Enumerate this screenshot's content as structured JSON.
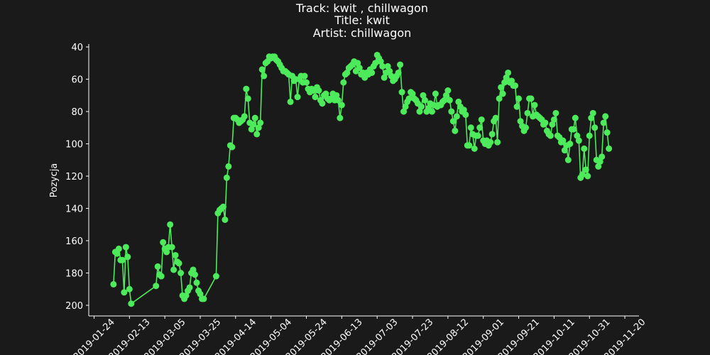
{
  "chart_data": {
    "type": "line",
    "title": [
      "Track:  kwit , chillwagon",
      "Title:  kwit",
      "Artist:  chillwagon"
    ],
    "y_label": "Pozycja",
    "color": "#4deb5b",
    "xlim": [
      "2019-01-21",
      "2019-11-28"
    ],
    "xticks": [
      "2019-01-24",
      "2019-02-13",
      "2019-03-05",
      "2019-03-25",
      "2019-04-14",
      "2019-05-04",
      "2019-05-24",
      "2019-06-13",
      "2019-07-03",
      "2019-07-23",
      "2019-08-12",
      "2019-09-01",
      "2019-09-21",
      "2019-10-11",
      "2019-10-31",
      "2019-11-20"
    ],
    "ylim": [
      206.6,
      38.2
    ],
    "yticks": [
      40,
      60,
      80,
      100,
      120,
      140,
      160,
      180,
      200
    ],
    "x": [
      "2019-02-04",
      "2019-02-05",
      "2019-02-06",
      "2019-02-07",
      "2019-02-08",
      "2019-02-09",
      "2019-02-10",
      "2019-02-11",
      "2019-02-12",
      "2019-02-13",
      "2019-02-14",
      "2019-02-28",
      "2019-03-01",
      "2019-03-02",
      "2019-03-03",
      "2019-03-04",
      "2019-03-05",
      "2019-03-06",
      "2019-03-07",
      "2019-03-08",
      "2019-03-09",
      "2019-03-10",
      "2019-03-11",
      "2019-03-12",
      "2019-03-13",
      "2019-03-14",
      "2019-03-15",
      "2019-03-16",
      "2019-03-17",
      "2019-03-18",
      "2019-03-19",
      "2019-03-20",
      "2019-03-21",
      "2019-03-22",
      "2019-03-23",
      "2019-03-24",
      "2019-03-25",
      "2019-03-26",
      "2019-03-27",
      "2019-04-03",
      "2019-04-04",
      "2019-04-05",
      "2019-04-06",
      "2019-04-07",
      "2019-04-08",
      "2019-04-09",
      "2019-04-10",
      "2019-04-11",
      "2019-04-12",
      "2019-04-13",
      "2019-04-14",
      "2019-04-15",
      "2019-04-16",
      "2019-04-17",
      "2019-04-18",
      "2019-04-19",
      "2019-04-20",
      "2019-04-21",
      "2019-04-22",
      "2019-04-23",
      "2019-04-24",
      "2019-04-25",
      "2019-04-26",
      "2019-04-27",
      "2019-04-28",
      "2019-04-29",
      "2019-04-30",
      "2019-05-01",
      "2019-05-02",
      "2019-05-03",
      "2019-05-04",
      "2019-05-05",
      "2019-05-06",
      "2019-05-07",
      "2019-05-08",
      "2019-05-09",
      "2019-05-10",
      "2019-05-11",
      "2019-05-12",
      "2019-05-13",
      "2019-05-14",
      "2019-05-15",
      "2019-05-16",
      "2019-05-17",
      "2019-05-18",
      "2019-05-19",
      "2019-05-20",
      "2019-05-21",
      "2019-05-22",
      "2019-05-23",
      "2019-05-24",
      "2019-05-25",
      "2019-05-26",
      "2019-05-27",
      "2019-05-28",
      "2019-05-29",
      "2019-05-30",
      "2019-05-31",
      "2019-06-01",
      "2019-06-02",
      "2019-06-03",
      "2019-06-04",
      "2019-06-05",
      "2019-06-06",
      "2019-06-07",
      "2019-06-08",
      "2019-06-09",
      "2019-06-10",
      "2019-06-11",
      "2019-06-12",
      "2019-06-13",
      "2019-06-14",
      "2019-06-15",
      "2019-06-16",
      "2019-06-17",
      "2019-06-18",
      "2019-06-19",
      "2019-06-20",
      "2019-06-21",
      "2019-06-22",
      "2019-06-23",
      "2019-06-24",
      "2019-06-25",
      "2019-06-26",
      "2019-06-27",
      "2019-06-28",
      "2019-06-29",
      "2019-06-30",
      "2019-07-01",
      "2019-07-02",
      "2019-07-03",
      "2019-07-04",
      "2019-07-05",
      "2019-07-06",
      "2019-07-07",
      "2019-07-08",
      "2019-07-09",
      "2019-07-10",
      "2019-07-11",
      "2019-07-12",
      "2019-07-13",
      "2019-07-14",
      "2019-07-15",
      "2019-07-16",
      "2019-07-17",
      "2019-07-18",
      "2019-07-19",
      "2019-07-20",
      "2019-07-21",
      "2019-07-22",
      "2019-07-23",
      "2019-07-24",
      "2019-07-25",
      "2019-07-26",
      "2019-07-27",
      "2019-07-28",
      "2019-07-29",
      "2019-07-30",
      "2019-07-31",
      "2019-08-01",
      "2019-08-02",
      "2019-08-03",
      "2019-08-04",
      "2019-08-05",
      "2019-08-06",
      "2019-08-07",
      "2019-08-08",
      "2019-08-09",
      "2019-08-10",
      "2019-08-11",
      "2019-08-12",
      "2019-08-13",
      "2019-08-14",
      "2019-08-15",
      "2019-08-16",
      "2019-08-17",
      "2019-08-18",
      "2019-08-19",
      "2019-08-20",
      "2019-08-21",
      "2019-08-22",
      "2019-08-23",
      "2019-08-24",
      "2019-08-25",
      "2019-08-26",
      "2019-08-27",
      "2019-08-28",
      "2019-08-29",
      "2019-08-30",
      "2019-08-31",
      "2019-09-01",
      "2019-09-02",
      "2019-09-03",
      "2019-09-04",
      "2019-09-05",
      "2019-09-06",
      "2019-09-07",
      "2019-09-08",
      "2019-09-09",
      "2019-09-10",
      "2019-09-11",
      "2019-09-12",
      "2019-09-13",
      "2019-09-14",
      "2019-09-15",
      "2019-09-16",
      "2019-09-17",
      "2019-09-18",
      "2019-09-19",
      "2019-09-20",
      "2019-09-21",
      "2019-09-22",
      "2019-09-23",
      "2019-09-24",
      "2019-09-25",
      "2019-09-26",
      "2019-09-27",
      "2019-09-28",
      "2019-09-29",
      "2019-09-30",
      "2019-10-01",
      "2019-10-02",
      "2019-10-03",
      "2019-10-04",
      "2019-10-05",
      "2019-10-06",
      "2019-10-07",
      "2019-10-08",
      "2019-10-09",
      "2019-10-10",
      "2019-10-11",
      "2019-10-12",
      "2019-10-13",
      "2019-10-14",
      "2019-10-15",
      "2019-10-16",
      "2019-10-17",
      "2019-10-18",
      "2019-10-19",
      "2019-10-20",
      "2019-10-21",
      "2019-10-22",
      "2019-10-23",
      "2019-10-24",
      "2019-10-25",
      "2019-10-26",
      "2019-10-27",
      "2019-10-28",
      "2019-10-29",
      "2019-10-30",
      "2019-10-31",
      "2019-11-01",
      "2019-11-02",
      "2019-11-03",
      "2019-11-04",
      "2019-11-05",
      "2019-11-06",
      "2019-11-07",
      "2019-11-08",
      "2019-11-09",
      "2019-11-10",
      "2019-11-11"
    ],
    "values": [
      187,
      167,
      168,
      165,
      172,
      172,
      192,
      164,
      170,
      190,
      199,
      188,
      176,
      181,
      182,
      161,
      165,
      167,
      164,
      150,
      164,
      178,
      169,
      173,
      174,
      180,
      194,
      196,
      194,
      191,
      189,
      180,
      178,
      181,
      186,
      191,
      193,
      196,
      196,
      182,
      143,
      141,
      140,
      139,
      147,
      121,
      114,
      101,
      102,
      84,
      84,
      85,
      87,
      86,
      85,
      83,
      66,
      72,
      87,
      91,
      88,
      84,
      94,
      90,
      87,
      54,
      58,
      50,
      49,
      46,
      47,
      46,
      46,
      48,
      49,
      51,
      53,
      55,
      55,
      56,
      57,
      74,
      58,
      61,
      60,
      71,
      60,
      58,
      62,
      58,
      62,
      66,
      68,
      66,
      67,
      71,
      65,
      67,
      73,
      75,
      70,
      69,
      72,
      73,
      72,
      69,
      73,
      70,
      73,
      84,
      76,
      62,
      57,
      56,
      53,
      52,
      51,
      49,
      55,
      50,
      53,
      57,
      56,
      59,
      56,
      57,
      54,
      56,
      52,
      50,
      45,
      47,
      49,
      52,
      59,
      56,
      52,
      55,
      58,
      61,
      60,
      58,
      56,
      51,
      68,
      80,
      77,
      74,
      72,
      68,
      69,
      72,
      73,
      75,
      80,
      77,
      70,
      73,
      80,
      78,
      75,
      80,
      76,
      69,
      77,
      76,
      76,
      74,
      73,
      70,
      67,
      73,
      80,
      86,
      92,
      83,
      74,
      77,
      80,
      79,
      82,
      101,
      101,
      90,
      94,
      103,
      95,
      95,
      90,
      85,
      98,
      100,
      98,
      101,
      99,
      94,
      86,
      84,
      99,
      72,
      65,
      69,
      62,
      59,
      56,
      62,
      61,
      64,
      64,
      77,
      72,
      86,
      89,
      92,
      90,
      81,
      72,
      72,
      83,
      76,
      82,
      83,
      84,
      85,
      88,
      87,
      92,
      94,
      95,
      88,
      85,
      81,
      95,
      96,
      99,
      98,
      104,
      101,
      110,
      100,
      91,
      91,
      84,
      95,
      98,
      121,
      119,
      103,
      116,
      120,
      95,
      84,
      81,
      90,
      110,
      114,
      111,
      108,
      87,
      83,
      93,
      103
    ]
  }
}
